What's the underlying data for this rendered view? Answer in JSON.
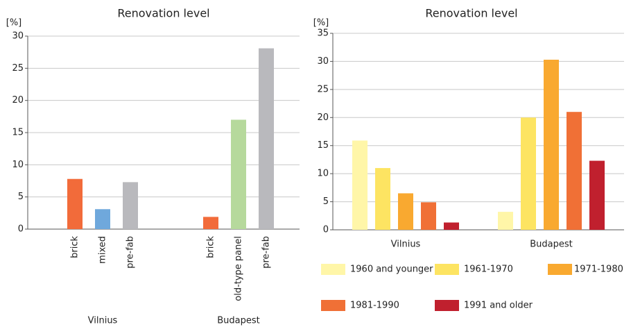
{
  "chart_data": [
    {
      "type": "grouped-category-bar",
      "title": "Renovation level",
      "y_label": "[%]",
      "ylim": [
        0,
        30
      ],
      "yticks": [
        0,
        5,
        10,
        15,
        20,
        25,
        30
      ],
      "grid": true,
      "groups": [
        {
          "name": "Vilnius",
          "categories": [
            "brick",
            "mixed",
            "pre-fab"
          ],
          "values": [
            7.8,
            3.1,
            7.3
          ],
          "colors": [
            "#f26b3a",
            "#6fa8dc",
            "#b9b9bd"
          ]
        },
        {
          "name": "Budapest",
          "categories": [
            "brick",
            "old-type panel",
            "pre-fab"
          ],
          "values": [
            1.9,
            17,
            28.1
          ],
          "colors": [
            "#f26b3a",
            "#b6d99c",
            "#b9b9bd"
          ]
        }
      ]
    },
    {
      "type": "bar",
      "title": "Renovation level",
      "y_label": "[%]",
      "ylim": [
        0,
        35
      ],
      "yticks": [
        0,
        5,
        10,
        15,
        20,
        25,
        30,
        35
      ],
      "grid": true,
      "categories": [
        "Vilnius",
        "Budapest"
      ],
      "series": [
        {
          "name": "1960 and younger",
          "color": "#fff6a8",
          "values": [
            15.9,
            3.2
          ]
        },
        {
          "name": "1961-1970",
          "color": "#fde462",
          "values": [
            11,
            20
          ]
        },
        {
          "name": "1971-1980",
          "color": "#f9a930",
          "values": [
            6.5,
            30.3
          ]
        },
        {
          "name": "1981-1990",
          "color": "#f07036",
          "values": [
            4.9,
            21
          ]
        },
        {
          "name": "1991 and older",
          "color": "#c0202e",
          "values": [
            1.3,
            12.3
          ]
        }
      ]
    }
  ]
}
